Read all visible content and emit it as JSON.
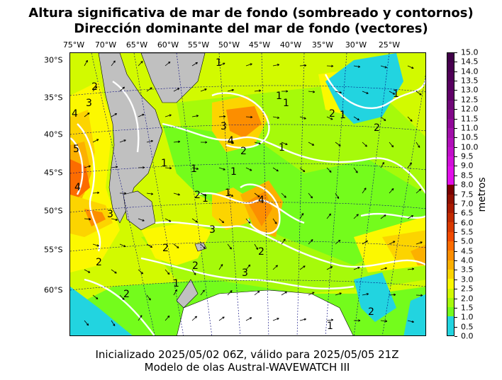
{
  "title": {
    "line1": "Altura significativa de mar de fondo (sombreado y contornos)",
    "line2": "Dirección dominante del mar de fondo (vectores)"
  },
  "footer": {
    "line1": "Inicializado 2025/05/02 06Z, válido para 2025/05/05 21Z",
    "line2": "Modelo de olas Austral-WAVEWATCH III"
  },
  "map": {
    "longitude_labels": [
      "75°W",
      "70°W",
      "65°W",
      "60°W",
      "55°W",
      "50°W",
      "45°W",
      "40°W",
      "35°W",
      "30°W",
      "25°W"
    ],
    "latitude_labels": [
      "30°S",
      "35°S",
      "40°S",
      "45°S",
      "50°S",
      "55°S",
      "60°S"
    ],
    "land_color": "#c0c0c0",
    "ice_color": "#ffffff",
    "contour_labels": [
      "1",
      "1",
      "1",
      "1",
      "1",
      "1",
      "1",
      "1",
      "1",
      "1",
      "1",
      "1",
      "1",
      "2",
      "2",
      "2",
      "2",
      "2",
      "2",
      "2",
      "2",
      "2",
      "2",
      "2",
      "3",
      "3",
      "3",
      "3",
      "3",
      "4",
      "4",
      "4",
      "4",
      "5"
    ]
  },
  "colorbar": {
    "label": "metros",
    "ticks": [
      "0.0",
      "0.5",
      "1.0",
      "1.5",
      "2.0",
      "2.5",
      "3.0",
      "3.5",
      "4.0",
      "4.5",
      "5.0",
      "5.5",
      "6.0",
      "6.5",
      "7.0",
      "7.5",
      "8.0",
      "8.5",
      "9.0",
      "9.5",
      "10.0",
      "10.5",
      "11.0",
      "11.5",
      "12.0",
      "12.5",
      "13.0",
      "13.5",
      "14.0",
      "14.5",
      "15.0"
    ],
    "colors": [
      "#22d4e0",
      "#22d4e0",
      "#74fc1c",
      "#a6fa0a",
      "#d2fa00",
      "#fcf800",
      "#fcd400",
      "#fcb000",
      "#fc8e00",
      "#fc6c00",
      "#f04a00",
      "#d83a00",
      "#c02a00",
      "#a81a00",
      "#901000",
      "#780000",
      "#e010e8",
      "#e010e8",
      "#d010d8",
      "#c010c8",
      "#b010b8",
      "#a010a8",
      "#900898",
      "#800888",
      "#700878",
      "#600068",
      "#580060",
      "#500058",
      "#480050",
      "#400048"
    ]
  }
}
